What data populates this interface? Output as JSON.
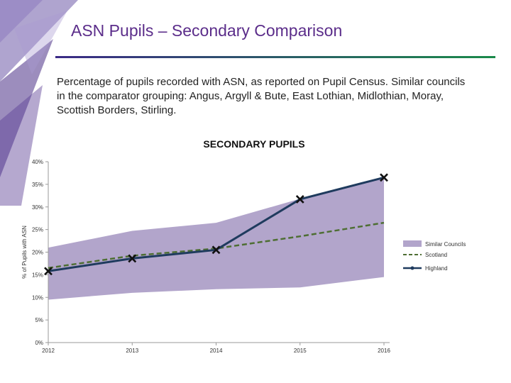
{
  "page": {
    "title": "ASN Pupils – Secondary Comparison",
    "subtitle": "Percentage of pupils recorded with ASN, as reported on Pupil Census. Similar councils in the comparator grouping: Angus, Argyll & Bute, East Lothian, Midlothian, Moray, Scottish Borders, Stirling."
  },
  "colors": {
    "title": "#5b2d8a",
    "band": "#b2a5cb",
    "scotland": "#4e6e33",
    "highland": "#1f3b5e",
    "rule_start": "#3b2a86",
    "rule_end": "#1a8a4a"
  },
  "chart_data": {
    "type": "line",
    "title": "SECONDARY PUPILS",
    "ylabel": "% of Pupils with ASN",
    "xlabel": "",
    "ylim": [
      0,
      40
    ],
    "y_ticks": [
      "0%",
      "5%",
      "10%",
      "15%",
      "20%",
      "25%",
      "30%",
      "35%",
      "40%"
    ],
    "categories": [
      "2012",
      "2013",
      "2014",
      "2015",
      "2016"
    ],
    "grid": false,
    "legend_position": "right",
    "band": {
      "name": "Similar Councils",
      "low": [
        9.5,
        11.0,
        11.8,
        12.2,
        14.5
      ],
      "high": [
        21.0,
        24.7,
        26.5,
        31.8,
        36.5
      ]
    },
    "series": [
      {
        "name": "Scotland",
        "values": [
          16.5,
          19.2,
          20.8,
          23.5,
          26.5
        ]
      },
      {
        "name": "Highland",
        "values": [
          15.8,
          18.6,
          20.5,
          31.7,
          36.5
        ]
      }
    ]
  }
}
